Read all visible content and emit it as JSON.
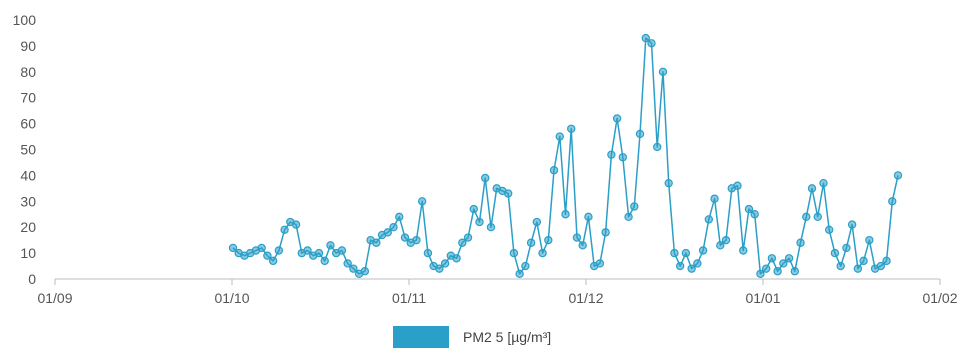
{
  "chart_data": {
    "type": "line",
    "x_tick_labels": [
      "01/09",
      "01/10",
      "01/11",
      "01/12",
      "01/01",
      "01/02"
    ],
    "y_tick_labels": [
      "0",
      "10",
      "20",
      "30",
      "40",
      "50",
      "60",
      "70",
      "80",
      "90",
      "100"
    ],
    "ylim": [
      0,
      100
    ],
    "grid": false,
    "legend_position": "bottom-center",
    "series": [
      {
        "name": "PM2 5 [µg/m³]",
        "color": "#2a9fc7",
        "values": [
          12,
          10,
          9,
          10,
          11,
          12,
          9,
          7,
          11,
          19,
          22,
          21,
          10,
          11,
          9,
          10,
          7,
          13,
          10,
          11,
          6,
          4,
          2,
          3,
          15,
          14,
          17,
          18,
          20,
          24,
          16,
          14,
          15,
          30,
          10,
          5,
          4,
          6,
          9,
          8,
          14,
          16,
          27,
          22,
          39,
          20,
          35,
          34,
          33,
          10,
          2,
          5,
          14,
          22,
          10,
          15,
          42,
          55,
          25,
          58,
          16,
          13,
          24,
          5,
          6,
          18,
          48,
          62,
          47,
          24,
          28,
          56,
          93,
          91,
          51,
          80,
          37,
          10,
          5,
          10,
          4,
          6,
          11,
          23,
          31,
          13,
          15,
          35,
          36,
          11,
          27,
          25,
          2,
          4,
          8,
          3,
          6,
          8,
          3,
          14,
          24,
          35,
          24,
          37,
          19,
          10,
          5,
          12,
          21,
          4,
          7,
          15,
          4,
          5,
          7,
          30,
          40
        ]
      }
    ]
  }
}
